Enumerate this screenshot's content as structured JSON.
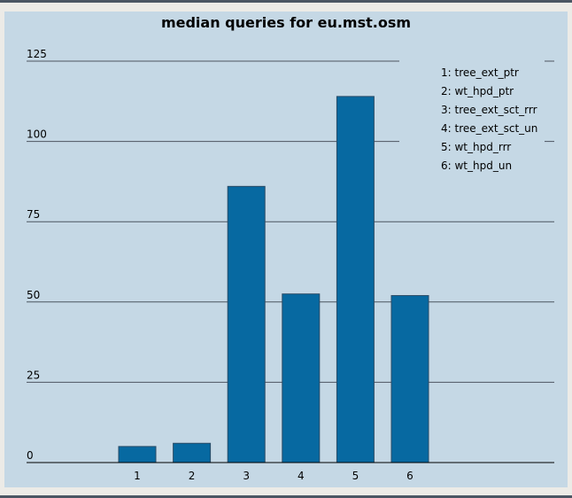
{
  "colors": {
    "bar": "#0769a1",
    "bar_edge": "#2a4b66",
    "grid": "#4d5560",
    "panel": "#c5d8e5"
  },
  "chart_data": {
    "type": "bar",
    "title": "median queries for eu.mst.osm",
    "xlabel": "",
    "ylabel": "",
    "categories": [
      "1",
      "2",
      "3",
      "4",
      "5",
      "6"
    ],
    "values": [
      5,
      6,
      86,
      52.5,
      114,
      52
    ],
    "ylim": [
      0,
      125
    ],
    "yticks": [
      0,
      25,
      50,
      75,
      100,
      125
    ],
    "grid": true,
    "legend_position": "top-right",
    "legend": [
      "1: tree_ext_ptr",
      "2: wt_hpd_ptr",
      "3: tree_ext_sct_rrr",
      "4: tree_ext_sct_un",
      "5: wt_hpd_rrr",
      "6: wt_hpd_un"
    ]
  }
}
